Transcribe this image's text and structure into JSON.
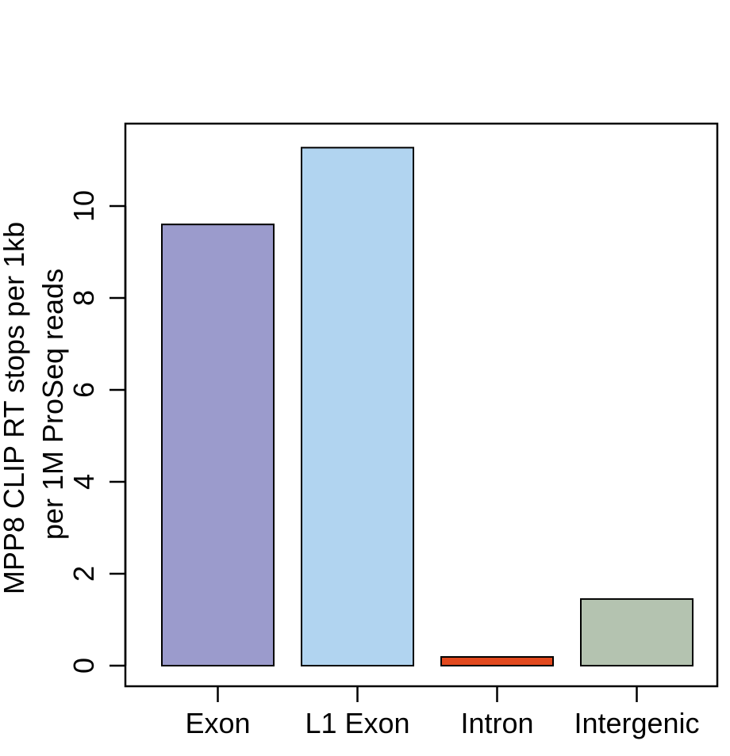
{
  "chart_data": {
    "type": "bar",
    "categories": [
      "Exon",
      "L1 Exon",
      "Intron",
      "Intergenic"
    ],
    "values": [
      9.6,
      11.27,
      0.19,
      1.45
    ],
    "colors": [
      "#9b9bcc",
      "#b1d4f0",
      "#e2491e",
      "#b4c3b0"
    ],
    "ylabel_lines": [
      "MPP8 CLIP RT stops per 1kb",
      "per 1M ProSeq reads"
    ],
    "yticks": [
      0,
      2,
      4,
      6,
      8,
      10
    ],
    "ylim": [
      0,
      11.8
    ],
    "grid": false,
    "legend": "none"
  }
}
